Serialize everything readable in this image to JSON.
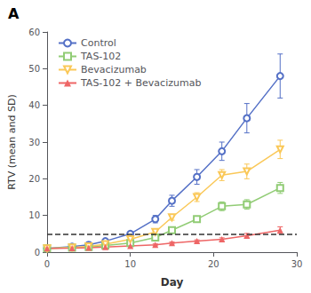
{
  "chart_data": {
    "type": "line",
    "title": "A",
    "xlabel": "Day",
    "ylabel": "RTV (mean and SD)",
    "xlim": [
      0,
      30
    ],
    "ylim": [
      0,
      60
    ],
    "xticks": [
      0,
      10,
      20,
      30
    ],
    "yticks": [
      0,
      10,
      20,
      30,
      40,
      50,
      60
    ],
    "grid": false,
    "legend": "upper left",
    "hline": {
      "y": 5.0,
      "line_style": "dashed"
    },
    "x": [
      0,
      3,
      5,
      7,
      10,
      13,
      15,
      18,
      21,
      24,
      28
    ],
    "series": [
      {
        "name": "Control",
        "marker": "open_circle",
        "values": [
          1.0,
          1.5,
          2.0,
          3.0,
          5.0,
          9.0,
          14.0,
          20.5,
          27.5,
          36.5,
          48.0
        ],
        "yerr": [
          0.1,
          0.3,
          0.4,
          0.5,
          0.6,
          1.0,
          1.5,
          2.0,
          2.5,
          4.0,
          6.0
        ]
      },
      {
        "name": "TAS-102",
        "marker": "open_square",
        "values": [
          1.0,
          1.2,
          1.4,
          1.8,
          2.5,
          4.0,
          6.0,
          9.0,
          12.5,
          13.0,
          17.5
        ],
        "yerr": [
          0.1,
          0.2,
          0.2,
          0.3,
          0.4,
          0.5,
          0.6,
          0.8,
          1.2,
          1.3,
          1.5
        ]
      },
      {
        "name": "Bevacizumab",
        "marker": "open_triangle_down",
        "values": [
          1.0,
          1.3,
          1.6,
          2.2,
          3.5,
          5.5,
          9.5,
          15.0,
          21.0,
          22.0,
          28.0
        ],
        "yerr": [
          0.1,
          0.2,
          0.3,
          0.4,
          0.5,
          0.6,
          0.8,
          1.2,
          1.5,
          2.0,
          2.5
        ]
      },
      {
        "name": "TAS-102 + Bevacizumab",
        "marker": "filled_triangle_up",
        "values": [
          1.0,
          1.1,
          1.2,
          1.4,
          1.7,
          2.0,
          2.5,
          3.0,
          3.5,
          4.5,
          6.0
        ],
        "yerr": [
          0.1,
          0.1,
          0.15,
          0.15,
          0.2,
          0.25,
          0.3,
          0.35,
          0.4,
          0.6,
          0.9
        ]
      }
    ]
  }
}
